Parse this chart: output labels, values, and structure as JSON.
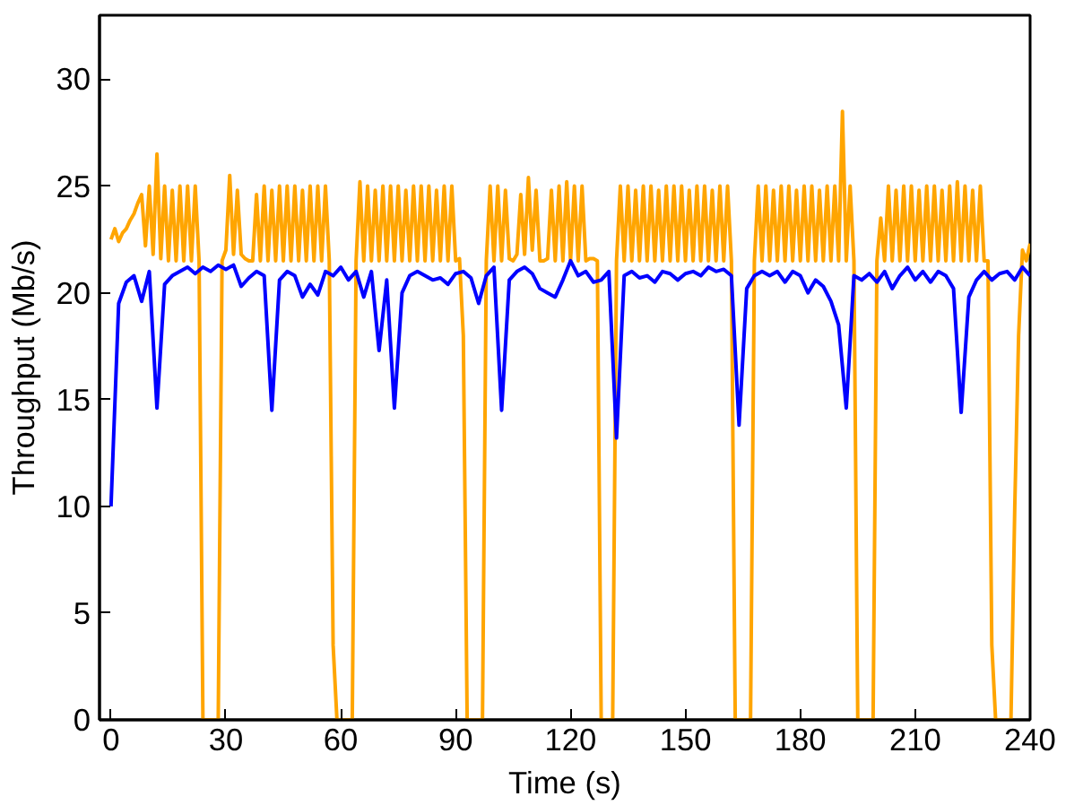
{
  "chart_data": {
    "type": "line",
    "xlabel": "Time (s)",
    "ylabel": "Throughput (Mb/s)",
    "xlim": [
      -3,
      240
    ],
    "ylim": [
      0,
      33
    ],
    "xticks": [
      0,
      30,
      60,
      90,
      120,
      150,
      180,
      210,
      240
    ],
    "yticks": [
      0,
      5,
      10,
      15,
      20,
      25,
      30
    ],
    "grid": false,
    "marker": "none",
    "line_style": "solid",
    "series": [
      {
        "color": "#ffa500",
        "x": [
          0,
          1,
          2,
          3,
          4,
          5,
          6,
          7,
          8,
          9,
          10,
          11,
          12,
          13,
          14,
          15,
          16,
          17,
          18,
          19,
          20,
          21,
          22,
          23,
          24,
          25,
          26,
          27,
          28,
          29,
          30,
          31,
          32,
          33,
          34,
          35,
          36,
          37,
          38,
          39,
          40,
          41,
          42,
          43,
          44,
          45,
          46,
          47,
          48,
          49,
          50,
          51,
          52,
          53,
          54,
          55,
          56,
          57,
          58,
          59,
          60,
          61,
          62,
          63,
          64,
          65,
          66,
          67,
          68,
          69,
          70,
          71,
          72,
          73,
          74,
          75,
          76,
          77,
          78,
          79,
          80,
          81,
          82,
          83,
          84,
          85,
          86,
          87,
          88,
          89,
          90,
          91,
          92,
          93,
          94,
          95,
          96,
          97,
          98,
          99,
          100,
          101,
          102,
          103,
          104,
          105,
          106,
          107,
          108,
          109,
          110,
          111,
          112,
          113,
          114,
          115,
          116,
          117,
          118,
          119,
          120,
          121,
          122,
          123,
          124,
          125,
          126,
          127,
          128,
          129,
          130,
          131,
          132,
          133,
          134,
          135,
          136,
          137,
          138,
          139,
          140,
          141,
          142,
          143,
          144,
          145,
          146,
          147,
          148,
          149,
          150,
          151,
          152,
          153,
          154,
          155,
          156,
          157,
          158,
          159,
          160,
          161,
          162,
          163,
          164,
          165,
          166,
          167,
          168,
          169,
          170,
          171,
          172,
          173,
          174,
          175,
          176,
          177,
          178,
          179,
          180,
          181,
          182,
          183,
          184,
          185,
          186,
          187,
          188,
          189,
          190,
          191,
          192,
          193,
          194,
          195,
          196,
          197,
          198,
          199,
          200,
          201,
          202,
          203,
          204,
          205,
          206,
          207,
          208,
          209,
          210,
          211,
          212,
          213,
          214,
          215,
          216,
          217,
          218,
          219,
          220,
          221,
          222,
          223,
          224,
          225,
          226,
          227,
          228,
          229,
          230,
          231,
          232,
          233,
          234,
          235,
          236,
          237,
          238,
          239,
          240
        ],
        "values": [
          22.5,
          23.0,
          22.4,
          22.8,
          23.0,
          23.4,
          23.7,
          24.2,
          24.6,
          22.2,
          25.0,
          21.8,
          26.5,
          21.6,
          25.0,
          21.5,
          24.8,
          21.5,
          25.0,
          21.5,
          25.0,
          21.5,
          25.0,
          21.5,
          0,
          0,
          0,
          0,
          0,
          21.5,
          22.0,
          25.5,
          21.8,
          24.8,
          21.8,
          21.6,
          21.5,
          21.5,
          24.6,
          21.5,
          25.0,
          21.5,
          24.8,
          21.5,
          25.0,
          21.5,
          25.0,
          21.5,
          25.0,
          21.5,
          24.8,
          21.5,
          25.0,
          21.5,
          25.0,
          21.5,
          25.0,
          21.5,
          3.5,
          0,
          0,
          0,
          0,
          0,
          21.5,
          25.2,
          21.5,
          25.0,
          21.5,
          24.8,
          21.5,
          25.0,
          21.5,
          25.0,
          21.5,
          25.0,
          21.5,
          24.8,
          21.5,
          25.0,
          21.5,
          25.0,
          21.5,
          25.0,
          21.5,
          24.8,
          21.5,
          25.0,
          21.5,
          25.0,
          21.5,
          21.6,
          18.0,
          0,
          0,
          0,
          0,
          0,
          21.5,
          25.0,
          21.5,
          25.0,
          21.5,
          24.8,
          21.6,
          21.5,
          21.8,
          24.6,
          21.8,
          25.4,
          22.0,
          24.8,
          21.5,
          21.5,
          21.6,
          24.8,
          21.5,
          25.0,
          21.5,
          25.2,
          21.5,
          25.0,
          21.5,
          25.0,
          21.5,
          21.6,
          21.6,
          21.5,
          0,
          0,
          0,
          0,
          21.5,
          25.0,
          21.5,
          25.0,
          21.5,
          24.8,
          21.5,
          25.0,
          21.5,
          25.0,
          21.5,
          24.8,
          21.5,
          25.0,
          21.5,
          25.0,
          21.5,
          25.0,
          21.5,
          24.8,
          21.5,
          25.0,
          21.5,
          25.0,
          21.5,
          24.8,
          21.5,
          25.0,
          21.5,
          25.0,
          21.5,
          0,
          0,
          0,
          0,
          0,
          21.5,
          25.0,
          21.5,
          25.0,
          21.5,
          24.8,
          21.5,
          25.0,
          21.5,
          25.0,
          21.5,
          24.8,
          21.5,
          25.0,
          21.5,
          25.0,
          21.5,
          24.8,
          21.5,
          25.0,
          21.5,
          25.0,
          21.5,
          28.5,
          21.5,
          25.0,
          21.5,
          0,
          0,
          0,
          0,
          0,
          21.5,
          23.5,
          21.5,
          25.0,
          21.5,
          24.8,
          21.5,
          25.0,
          21.5,
          25.0,
          21.5,
          24.8,
          21.5,
          25.0,
          21.5,
          25.0,
          21.5,
          24.8,
          21.5,
          25.0,
          21.5,
          25.2,
          21.5,
          25.0,
          21.5,
          24.8,
          21.5,
          25.0,
          21.5,
          21.5,
          3.5,
          0,
          0,
          0,
          0,
          0,
          10.0,
          18.0,
          22.0,
          21.5,
          22.3
        ]
      },
      {
        "color": "#0000ff",
        "x": [
          0,
          2,
          4,
          6,
          8,
          10,
          12,
          14,
          16,
          18,
          20,
          22,
          24,
          26,
          28,
          30,
          32,
          34,
          36,
          38,
          40,
          42,
          44,
          46,
          48,
          50,
          52,
          54,
          56,
          58,
          60,
          62,
          64,
          66,
          68,
          70,
          72,
          74,
          76,
          78,
          80,
          82,
          84,
          86,
          88,
          90,
          92,
          94,
          96,
          98,
          100,
          102,
          104,
          106,
          108,
          110,
          112,
          114,
          116,
          118,
          120,
          122,
          124,
          126,
          128,
          130,
          132,
          134,
          136,
          138,
          140,
          142,
          144,
          146,
          148,
          150,
          152,
          154,
          156,
          158,
          160,
          162,
          164,
          166,
          168,
          170,
          172,
          174,
          176,
          178,
          180,
          182,
          184,
          186,
          188,
          190,
          192,
          194,
          196,
          198,
          200,
          202,
          204,
          206,
          208,
          210,
          212,
          214,
          216,
          218,
          220,
          222,
          224,
          226,
          228,
          230,
          232,
          234,
          236,
          238,
          240
        ],
        "values": [
          10.0,
          19.5,
          20.5,
          20.8,
          19.6,
          21.0,
          14.6,
          20.4,
          20.8,
          21.0,
          21.2,
          20.9,
          21.2,
          21.0,
          21.3,
          21.1,
          21.3,
          20.3,
          20.7,
          21.0,
          20.8,
          14.5,
          20.6,
          21.0,
          20.8,
          19.8,
          20.4,
          19.9,
          21.0,
          20.8,
          21.2,
          20.6,
          21.0,
          19.8,
          21.0,
          17.3,
          20.6,
          14.6,
          20.0,
          20.8,
          21.0,
          20.8,
          20.6,
          20.7,
          20.4,
          20.9,
          21.0,
          20.7,
          19.5,
          20.8,
          21.2,
          14.5,
          20.6,
          21.0,
          21.2,
          20.9,
          20.2,
          20.0,
          19.8,
          20.6,
          21.5,
          20.8,
          21.0,
          20.5,
          20.6,
          21.0,
          13.2,
          20.8,
          21.0,
          20.7,
          20.8,
          20.5,
          21.0,
          20.9,
          20.6,
          20.9,
          21.0,
          20.8,
          21.2,
          21.0,
          21.1,
          20.8,
          13.8,
          20.2,
          20.8,
          21.0,
          20.8,
          21.0,
          20.5,
          21.0,
          20.8,
          20.0,
          20.6,
          20.3,
          19.6,
          18.5,
          14.6,
          20.8,
          20.6,
          20.9,
          20.5,
          21.0,
          20.2,
          20.8,
          21.2,
          20.6,
          21.0,
          20.5,
          21.0,
          20.8,
          20.2,
          14.4,
          19.8,
          20.6,
          21.0,
          20.6,
          20.9,
          21.0,
          20.6,
          21.2,
          20.8
        ]
      }
    ]
  }
}
